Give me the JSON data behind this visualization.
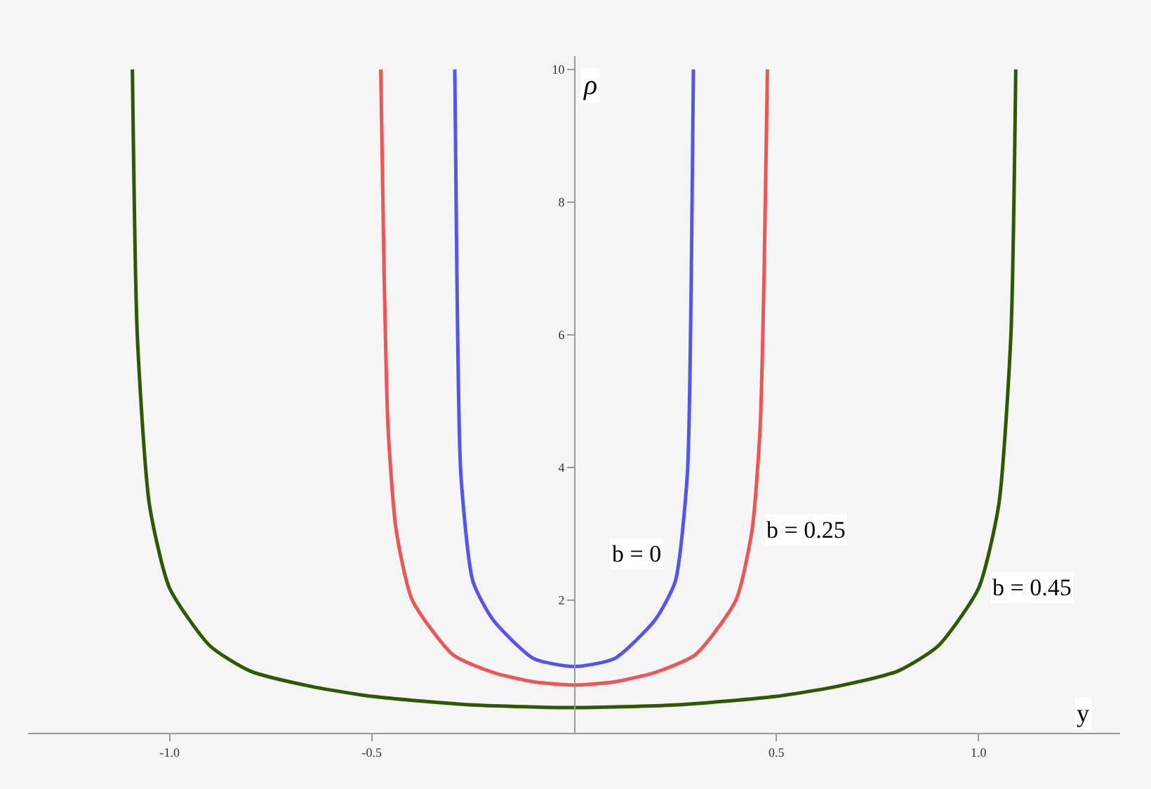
{
  "chart_data": {
    "type": "line",
    "xlabel": "y",
    "ylabel": "ρ",
    "xlim": [
      -1.35,
      1.35
    ],
    "ylim": [
      0,
      10.2
    ],
    "xticks": [
      {
        "value": -1.0,
        "label": "-1.0"
      },
      {
        "value": -0.5,
        "label": "-0.5"
      },
      {
        "value": 0.5,
        "label": "0.5"
      },
      {
        "value": 1.0,
        "label": "1.0"
      }
    ],
    "yticks": [
      2,
      4,
      6,
      8,
      10
    ],
    "grid": false,
    "legend": false,
    "marker": "none",
    "line_style": "solid",
    "series": [
      {
        "name": "b = 0",
        "color": "#5555ee",
        "x": [
          -0.295,
          -0.29,
          -0.28,
          -0.25,
          -0.2,
          -0.1,
          0,
          0.1,
          0.2,
          0.25,
          0.28,
          0.29,
          0.295
        ],
        "values": [
          10,
          7.0,
          3.9,
          2.28,
          1.7,
          1.12,
          1.0,
          1.12,
          1.7,
          2.28,
          3.9,
          7.0,
          10
        ]
      },
      {
        "name": "b = 0.25",
        "color": "#f05555",
        "x": [
          -0.478,
          -0.47,
          -0.46,
          -0.44,
          -0.4,
          -0.3,
          -0.2,
          -0.1,
          0,
          0.1,
          0.2,
          0.3,
          0.4,
          0.44,
          0.46,
          0.47,
          0.478
        ],
        "values": [
          10,
          7.0,
          4.6,
          3.06,
          2.0,
          1.18,
          0.91,
          0.77,
          0.72,
          0.77,
          0.91,
          1.18,
          2.0,
          3.06,
          4.6,
          7.0,
          10
        ]
      },
      {
        "name": "b = 0.45",
        "color": "#2d5a00",
        "x": [
          -1.092,
          -1.08,
          -1.05,
          -1.0,
          -0.9,
          -0.8,
          -0.65,
          -0.5,
          -0.25,
          0,
          0.25,
          0.5,
          0.65,
          0.8,
          0.9,
          1.0,
          1.05,
          1.08,
          1.092
        ],
        "values": [
          10,
          6.0,
          3.44,
          2.18,
          1.31,
          0.93,
          0.7,
          0.55,
          0.42,
          0.38,
          0.42,
          0.55,
          0.7,
          0.93,
          1.31,
          2.18,
          3.44,
          6.0,
          10
        ]
      }
    ]
  }
}
